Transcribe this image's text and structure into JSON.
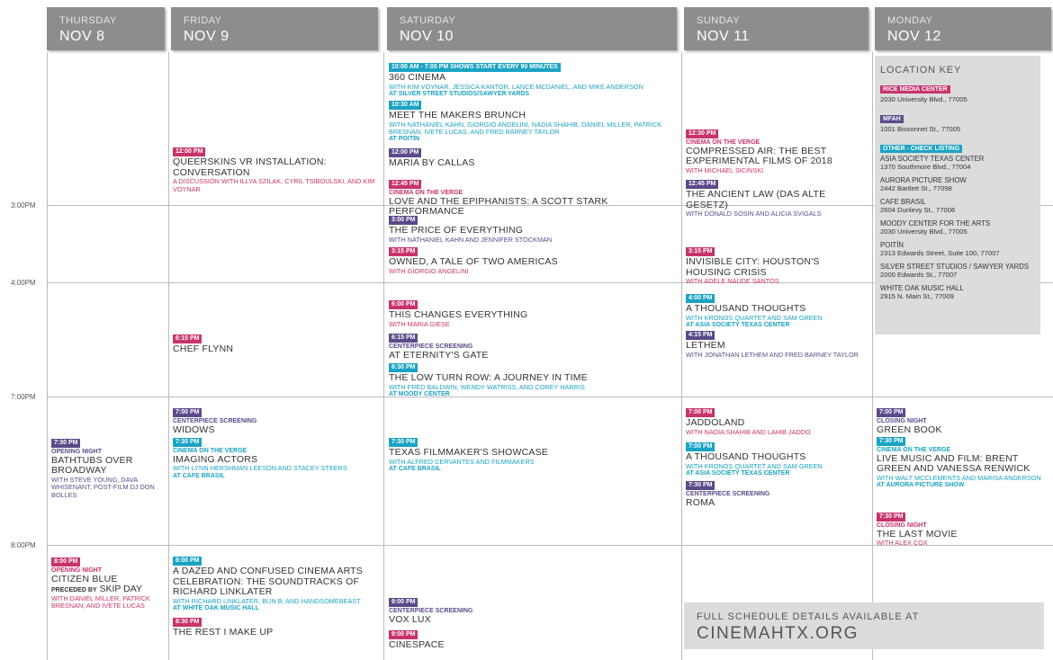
{
  "days": [
    {
      "weekday": "THURSDAY",
      "date": "NOV 8",
      "events": [
        {
          "time": "7:30 PM",
          "color": "#5b4a8a",
          "tag": "OPENING NIGHT",
          "title": "BATHTUBS OVER BROADWAY",
          "note": "WITH STEVE YOUNG, DAVA WHISENANT, POST-FILM DJ DON BOLLES"
        },
        {
          "time": "8:00 PM",
          "color": "#c8336a",
          "tag": "OPENING NIGHT",
          "title": "CITIZEN BLUE",
          "preceded_label": "PRECEDED BY",
          "preceded_title": "SKIP DAY",
          "note": "WITH DANIEL MILLER, PATRICK BRESNAN, AND IVETE LUCAS"
        }
      ]
    },
    {
      "weekday": "FRIDAY",
      "date": "NOV 9",
      "events": [
        {
          "time": "12:00 PM",
          "color": "#c8336a",
          "title": "QUEERSKINS VR INSTALLATION: CONVERSATION",
          "note": "A DISCUSSION WITH ILLYA SZILAK, CYRIL TSIBOULSKI, AND KIM VOYNAR"
        },
        {
          "time": "6:15 PM",
          "color": "#c8336a",
          "title": "CHEF FLYNN"
        },
        {
          "time": "7:00 PM",
          "color": "#5b4a8a",
          "tag": "CENTERPIECE SCREENING",
          "title": "WIDOWS"
        },
        {
          "time": "7:30 PM",
          "color": "#1aa3c4",
          "tag": "CINEMA ON THE VERGE",
          "title": "IMAGING ACTORS",
          "note": "WITH LYNN HERSHMAN LEESON AND STACEY STEERS",
          "venue": "AT CAFE BRASIL"
        },
        {
          "time": "8:00 PM",
          "color": "#1aa3c4",
          "title": "A DAZED AND CONFUSED CINEMA ARTS CELEBRATION: THE SOUNDTRACKS OF RICHARD LINKLATER",
          "note": "WITH RICHARD LINKLATER, BUN B, AND HANDSOMEBEAST",
          "venue": "AT WHITE OAK MUSIC HALL"
        },
        {
          "time": "8:30 PM",
          "color": "#c8336a",
          "title": "THE REST I MAKE UP"
        }
      ]
    },
    {
      "weekday": "SATURDAY",
      "date": "NOV 10",
      "events": [
        {
          "time": "10:00 AM - 7:00 PM SHOWS START EVERY 90 MINUTES",
          "color": "#1aa3c4",
          "title": "360 CINEMA",
          "note": "WITH KIM VOYNAR, JESSICA KANTOR, LANCE MCDANIEL, AND MIKE ANDERSON",
          "venue": "AT SILVER STREET STUDIOS/SAWYER YARDS"
        },
        {
          "time": "10:30 AM",
          "color": "#1aa3c4",
          "title": "MEET THE MAKERS BRUNCH",
          "note": "WITH NATHANIEL KAHN, GIORGIO ANGELINI, NADIA SHAHIB, DANIEL MILLER, PATRICK BRESNAN, IVETE LUCAS, AND FRED BARNEY TAYLOR",
          "venue": "AT POITÍN"
        },
        {
          "time": "12:00 PM",
          "color": "#5b4a8a",
          "title": "MARIA BY CALLAS"
        },
        {
          "time": "12:45 PM",
          "color": "#c8336a",
          "tag": "CINEMA ON THE VERGE",
          "title": "LOVE AND THE EPIPHANISTS: A SCOTT STARK PERFORMANCE"
        },
        {
          "time": "3:00 PM",
          "color": "#5b4a8a",
          "title": "THE PRICE OF EVERYTHING",
          "note": "WITH NATHANIEL KAHN AND JENNIFER STOCKMAN"
        },
        {
          "time": "3:15 PM",
          "color": "#c8336a",
          "title": "OWNED, A TALE OF TWO AMERICAS",
          "note": "WITH GIORGIO ANGELINI"
        },
        {
          "time": "6:00 PM",
          "color": "#c8336a",
          "title": "THIS CHANGES EVERYTHING",
          "note": "WITH MARIA GIESE"
        },
        {
          "time": "6:15 PM",
          "color": "#5b4a8a",
          "tag": "CENTERPIECE SCREENING",
          "title": "AT ETERNITY'S GATE"
        },
        {
          "time": "6:30 PM",
          "color": "#1aa3c4",
          "title": "THE LOW TURN ROW: A JOURNEY IN TIME",
          "note": "WITH FRED BALDWIN, WENDY WATRISS, AND COREY HARRIS",
          "venue": "AT MOODY CENTER"
        },
        {
          "time": "7:30 PM",
          "color": "#1aa3c4",
          "title": "TEXAS FILMMAKER'S SHOWCASE",
          "note": "WITH ALFRED CERVANTES AND FILMMAKERS",
          "venue": "AT CAFE BRASIL"
        },
        {
          "time": "9:00 PM",
          "color": "#5b4a8a",
          "tag": "CENTERPIECE SCREENING",
          "title": "VOX LUX"
        },
        {
          "time": "9:00 PM",
          "color": "#c8336a",
          "title": "CINESPACE"
        }
      ]
    },
    {
      "weekday": "SUNDAY",
      "date": "NOV 11",
      "events": [
        {
          "time": "12:30 PM",
          "color": "#c8336a",
          "tag": "CINEMA ON THE VERGE",
          "title": "COMPRESSED AIR: THE BEST EXPERIMENTAL FILMS OF 2018",
          "note": "WITH MICHAEL SICINSKI"
        },
        {
          "time": "12:45 PM",
          "color": "#5b4a8a",
          "title": "THE ANCIENT LAW (DAS ALTE GESETZ)",
          "note": "WITH DONALD SOSIN AND ALICIA SVIGALS"
        },
        {
          "time": "3:15 PM",
          "color": "#c8336a",
          "title": "INVISIBLE CITY: HOUSTON'S HOUSING CRISIS",
          "note": "WITH ADELE NAUDE SANTOS"
        },
        {
          "time": "4:00 PM",
          "color": "#1aa3c4",
          "title": "A THOUSAND THOUGHTS",
          "note": "WITH KRONOS QUARTET AND SAM GREEN",
          "venue": "AT ASIA SOCIETY TEXAS CENTER"
        },
        {
          "time": "4:15 PM",
          "color": "#5b4a8a",
          "title": "LETHEM",
          "note": "WITH JONATHAN LETHEM AND FRED BARNEY TAYLOR"
        },
        {
          "time": "7:00 PM",
          "color": "#c8336a",
          "title": "JADDOLAND",
          "note": "WITH NADIA SHAHIB AND LAHIB JADDO"
        },
        {
          "time": "7:00 PM",
          "color": "#1aa3c4",
          "title": "A THOUSAND THOUGHTS",
          "note": "WITH KRONOS QUARTET AND SAM GREEN",
          "venue": "AT ASIA SOCIETY TEXAS CENTER"
        },
        {
          "time": "7:30 PM",
          "color": "#5b4a8a",
          "tag": "CENTERPIECE SCREENING",
          "title": "ROMA"
        }
      ]
    },
    {
      "weekday": "MONDAY",
      "date": "NOV 12",
      "events": [
        {
          "time": "7:00 PM",
          "color": "#5b4a8a",
          "tag": "CLOSING NIGHT",
          "title": "GREEN BOOK"
        },
        {
          "time": "7:30 PM",
          "color": "#1aa3c4",
          "tag": "CINEMA ON THE VERGE",
          "title": "LIVE MUSIC AND FILM: BRENT GREEN AND VANESSA RENWICK",
          "note": "WITH WALT MCCLEMENTS AND MARISA ANDERSON",
          "venue": "AT AURORA PICTURE SHOW"
        },
        {
          "time": "7:30 PM",
          "color": "#c8336a",
          "tag": "CLOSING NIGHT",
          "title": "THE LAST MOVIE",
          "note": "WITH ALEX COX"
        }
      ]
    }
  ],
  "time_labels": [
    "3:00PM",
    "4:00PM",
    "7:00PM",
    "8:00PM"
  ],
  "location_key": {
    "title": "LOCATION KEY",
    "groups": [
      {
        "label": "RICE MEDIA CENTER",
        "color": "#c8336a",
        "entries": [
          {
            "address": "2030 University Blvd., 77005"
          }
        ]
      },
      {
        "label": "MFAH",
        "color": "#5b4a8a",
        "entries": [
          {
            "address": "1001 Bissonnet St., 77005"
          }
        ]
      },
      {
        "label": "OTHER - CHECK LISTING",
        "color": "#1aa3c4",
        "entries": [
          {
            "name": "ASIA SOCIETY TEXAS CENTER",
            "address": "1370 Southmore Blvd., 77004"
          },
          {
            "name": "AURORA PICTURE SHOW",
            "address": "2442 Bartlett St., 77098"
          },
          {
            "name": "CAFE BRASIL",
            "address": "2604 Dunlevy St., 77006"
          },
          {
            "name": "MOODY CENTER FOR THE ARTS",
            "address": "2030 University Blvd., 77005"
          },
          {
            "name": "POITÍN",
            "address": "2313 Edwards Street, Suite 100, 77007"
          },
          {
            "name": "SILVER STREET STUDIOS / SAWYER YARDS",
            "address": "2000 Edwards St., 77007"
          },
          {
            "name": "WHITE OAK MUSIC HALL",
            "address": "2915 N. Main St., 77009"
          }
        ]
      }
    ]
  },
  "footer": {
    "line1": "FULL SCHEDULE DETAILS AVAILABLE AT",
    "url": "CINEMAHTX.ORG"
  }
}
